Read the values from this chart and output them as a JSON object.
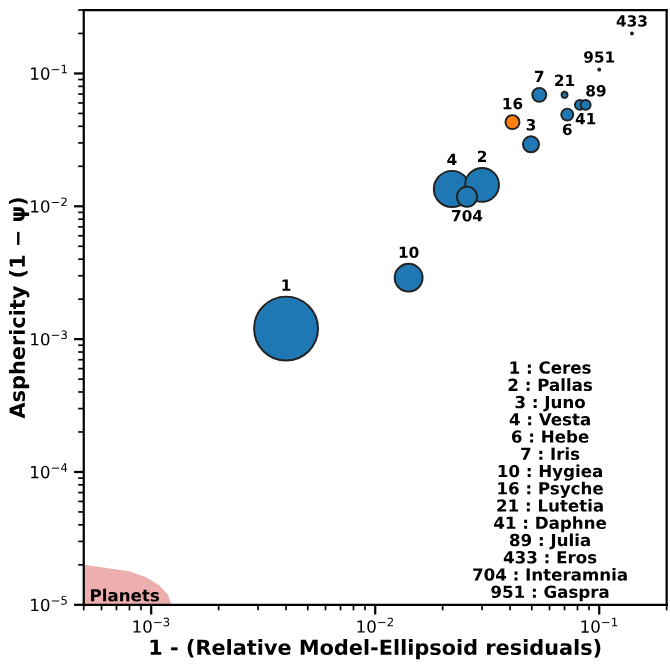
{
  "chart_data": {
    "type": "bubble",
    "xlabel": "1 - (Relative Model-Ellipsoid residuals)",
    "ylabel": "Asphericity (1 − ψ)",
    "log": "xy",
    "xlim": [
      0.0005,
      0.2
    ],
    "ylim": [
      1e-05,
      0.3
    ],
    "xticks": [
      {
        "value": 0.001,
        "label": "10$^{−3}$"
      },
      {
        "value": 0.01,
        "label": "10$^{−2}$"
      },
      {
        "value": 0.1,
        "label": "10$^{−1}$"
      }
    ],
    "yticks": [
      {
        "value": 1e-05,
        "label": "10$^{−5}$"
      },
      {
        "value": 0.0001,
        "label": "10$^{−4}$"
      },
      {
        "value": 0.001,
        "label": "10$^{−3}$"
      },
      {
        "value": 0.01,
        "label": "10$^{−2}$"
      },
      {
        "value": 0.1,
        "label": "10$^{−1}$"
      }
    ],
    "grid": false,
    "legend": false,
    "series": [
      {
        "type": "area",
        "name": "Planets",
        "color": "#e89a9a",
        "x": [
          0.0005,
          0.000796,
          0.00095,
          0.00109,
          0.00119,
          0.00123
        ],
        "values": [
          2e-05,
          1.79e-05,
          1.61e-05,
          1.4e-05,
          1.19e-05,
          1e-05
        ]
      },
      {
        "x": [
          0.004,
          0.0141,
          0.022,
          0.03,
          0.0257,
          0.041,
          0.0496,
          0.054,
          0.07,
          0.072,
          0.082,
          0.087,
          0.14,
          0.1
        ],
        "values": [
          0.0012,
          0.0029,
          0.0135,
          0.0145,
          0.0118,
          0.043,
          0.0293,
          0.069,
          0.069,
          0.049,
          0.058,
          0.058,
          0.2,
          0.107
        ],
        "sizes": [
          1,
          0.19,
          0.32,
          0.28,
          0.1,
          0.048,
          0.063,
          0.048,
          0.009,
          0.035,
          0.024,
          0.024,
          0.001,
          0.001
        ],
        "colors": [
          "#1f77b4",
          "#1f77b4",
          "#1f77b4",
          "#1f77b4",
          "#1f77b4",
          "#ff7f0e",
          "#1f77b4",
          "#1f77b4",
          "#1f77b4",
          "#1f77b4",
          "#1f77b4",
          "#1f77b4",
          "#1f77b4",
          "#1f77b4"
        ]
      }
    ],
    "annotations": [
      {
        "text": "1",
        "x": 0.004,
        "y": 0.0012
      },
      {
        "text": "10",
        "x": 0.0141,
        "y": 0.0029
      },
      {
        "text": "4",
        "x": 0.022,
        "y": 0.0135
      },
      {
        "text": "2",
        "x": 0.03,
        "y": 0.0145
      },
      {
        "text": "704",
        "x": 0.0257,
        "y": 0.0118
      },
      {
        "text": "16",
        "x": 0.041,
        "y": 0.043
      },
      {
        "text": "3",
        "x": 0.0496,
        "y": 0.0293
      },
      {
        "text": "7",
        "x": 0.054,
        "y": 0.069
      },
      {
        "text": "21",
        "x": 0.07,
        "y": 0.069
      },
      {
        "text": "6",
        "x": 0.072,
        "y": 0.049
      },
      {
        "text": "89",
        "x": 0.082,
        "y": 0.058
      },
      {
        "text": "41",
        "x": 0.087,
        "y": 0.058
      },
      {
        "text": "433",
        "x": 0.14,
        "y": 0.2
      },
      {
        "text": "951",
        "x": 0.1,
        "y": 0.107
      },
      "1 : Ceres",
      "2 : Pallas",
      "3 : Juno",
      "4 : Vesta",
      "6 : Hebe",
      "7 : Iris",
      "10 : Hygiea",
      "16 : Psyche",
      "21 : Lutetia",
      "41 : Daphne",
      "89 : Julia",
      "433 : Eros",
      "704 : Interamnia",
      "951 : Gaspra"
    ]
  }
}
